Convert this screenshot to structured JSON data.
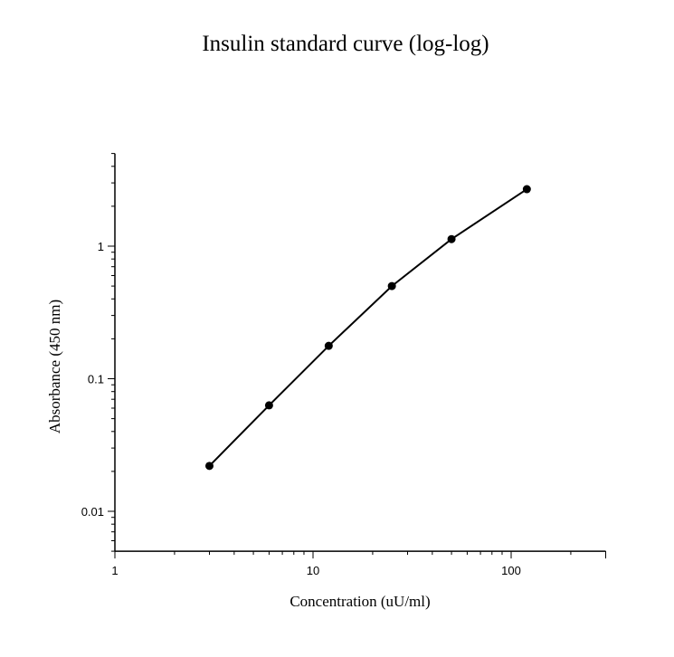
{
  "chart_data": {
    "type": "line",
    "title": "Insulin standard curve (log-log)",
    "xlabel": "Concentration (uU/ml)",
    "ylabel": "Absorbance (450 nm)",
    "xscale": "log",
    "yscale": "log",
    "xlim": [
      1,
      300
    ],
    "ylim": [
      0.005,
      5
    ],
    "x_ticks": [
      {
        "value": 1,
        "label": "1"
      },
      {
        "value": 10,
        "label": "10"
      },
      {
        "value": 100,
        "label": "100"
      }
    ],
    "y_ticks": [
      {
        "value": 0.01,
        "label": "0.01"
      },
      {
        "value": 0.1,
        "label": "0.1"
      },
      {
        "value": 1,
        "label": "1"
      }
    ],
    "grid": false,
    "markers": "filled-circle",
    "color": "#000000",
    "series": [
      {
        "x": [
          3,
          6,
          12,
          25,
          50,
          120
        ],
        "y": [
          0.022,
          0.063,
          0.177,
          0.5,
          1.13,
          2.69
        ]
      }
    ]
  }
}
